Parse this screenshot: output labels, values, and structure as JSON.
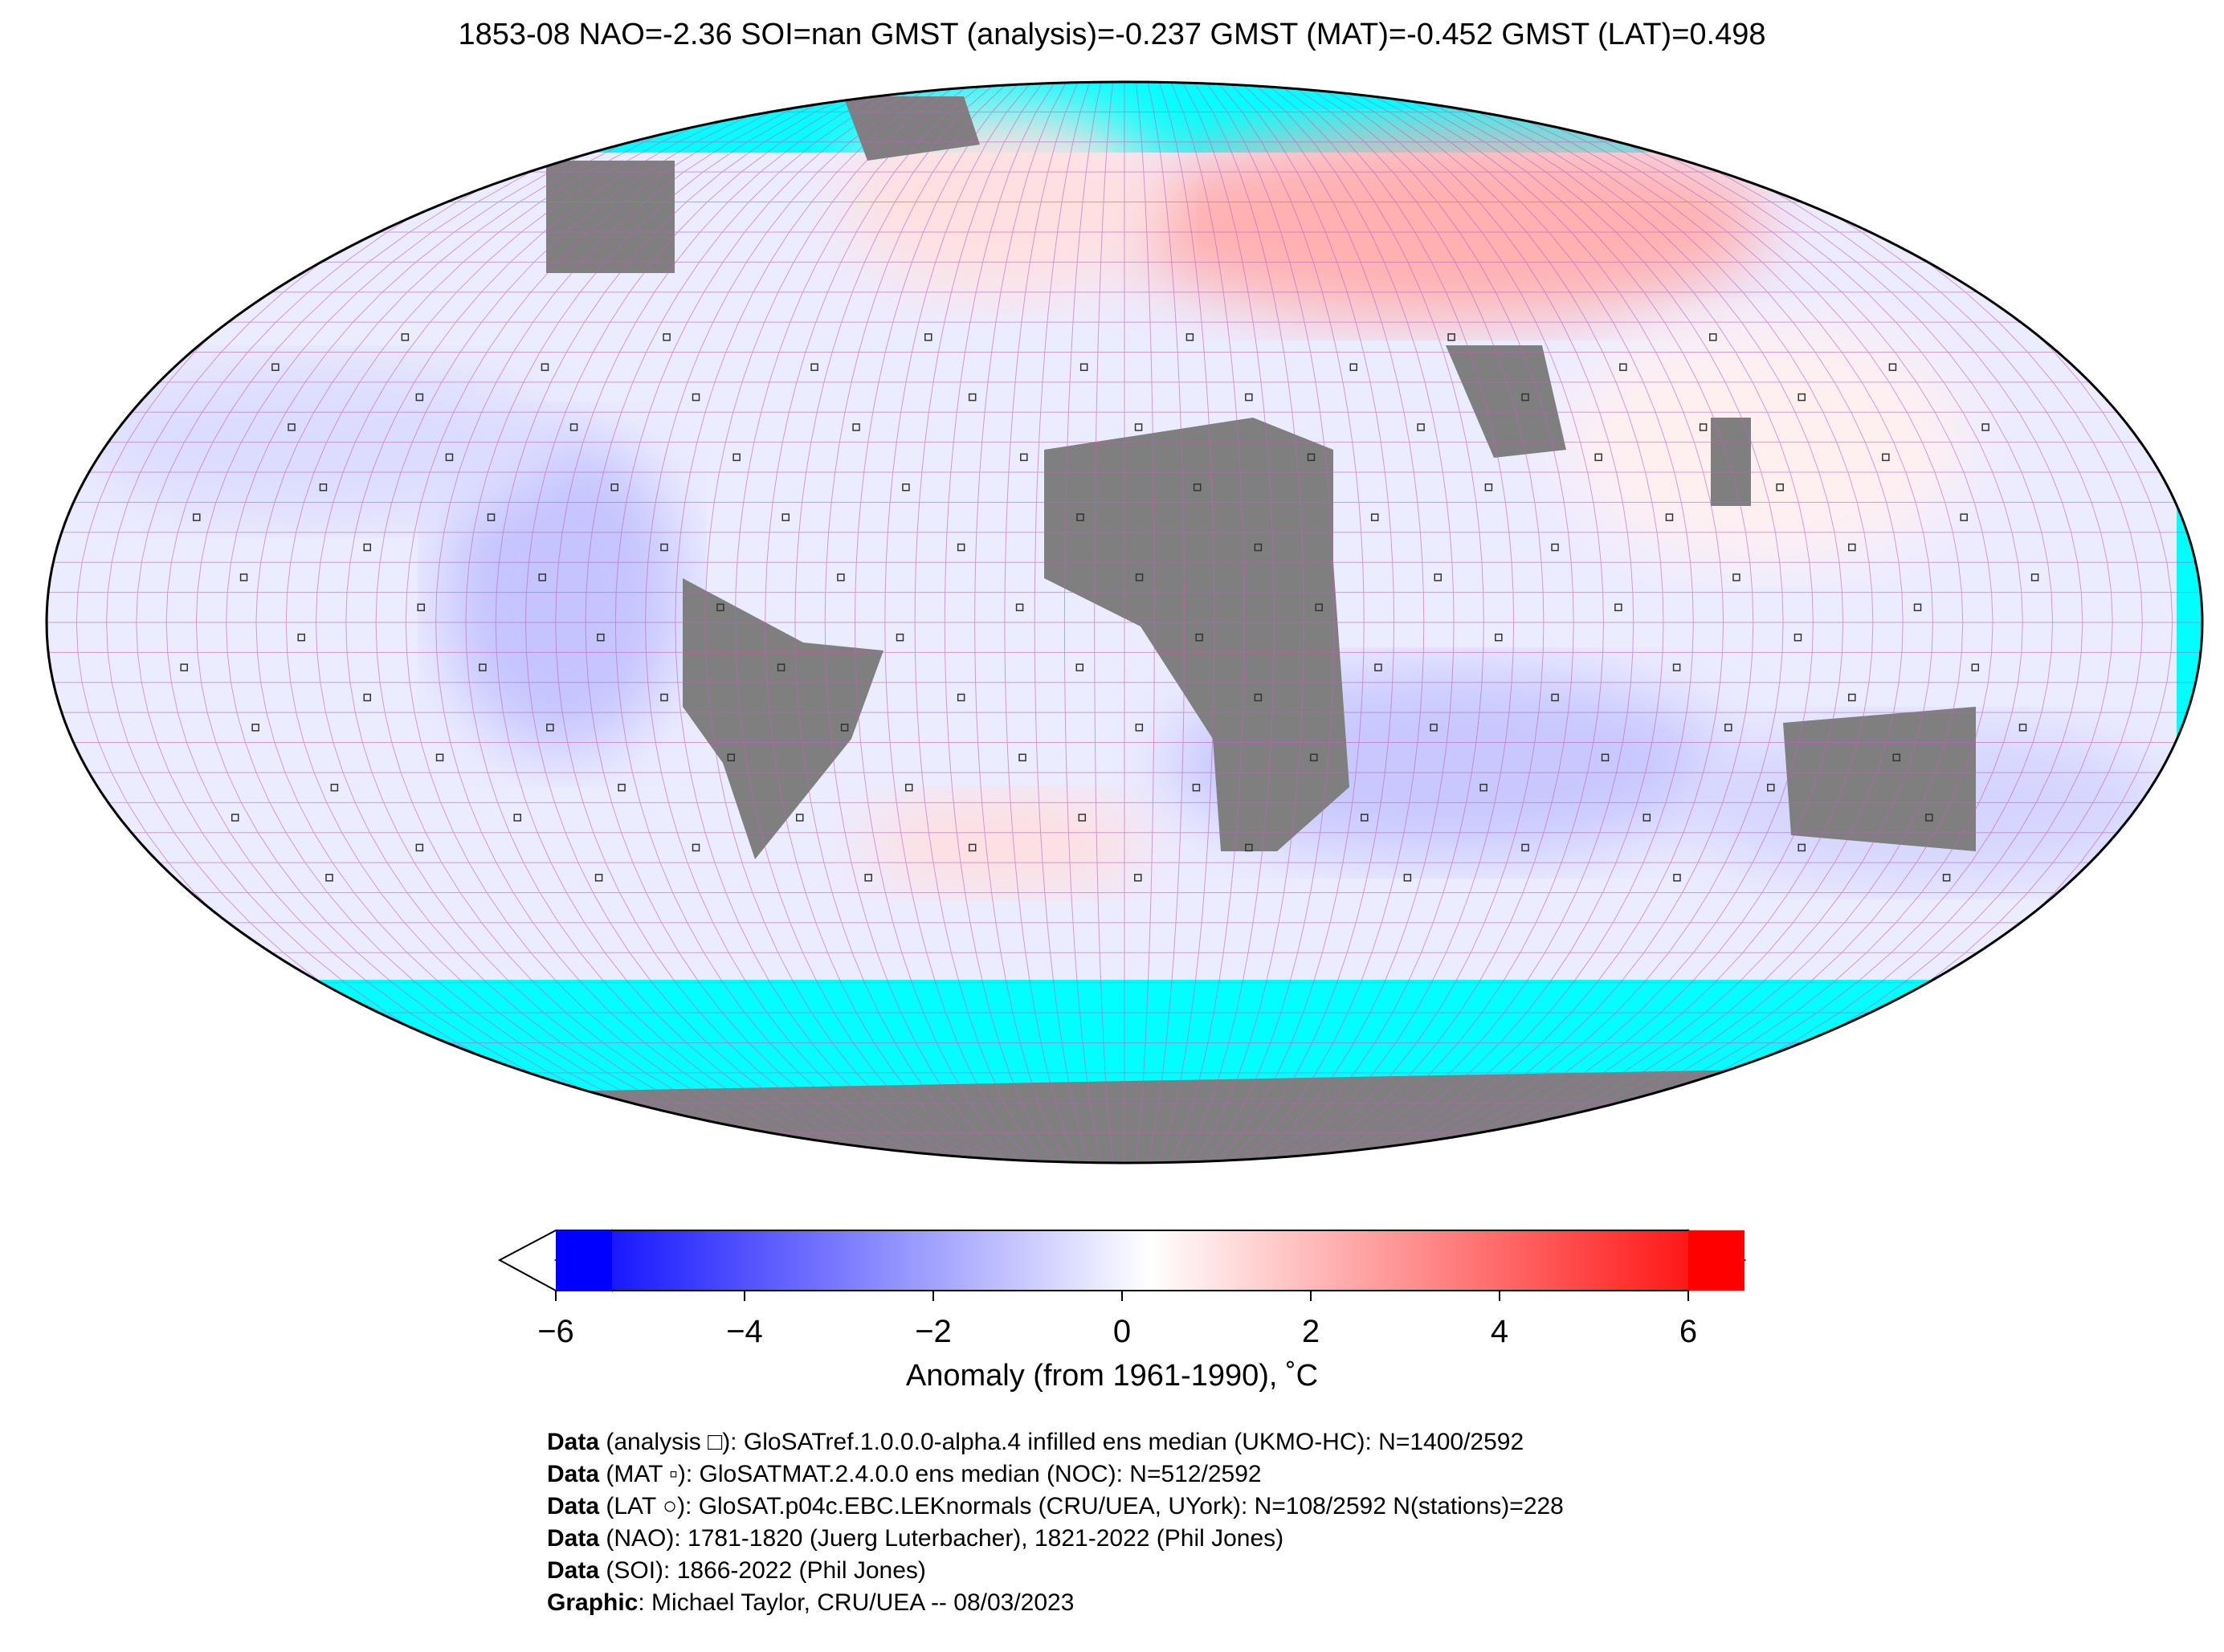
{
  "title": "1853-08 NAO=-2.36 SOI=nan GMST (analysis)=-0.237 GMST (MAT)=-0.452 GMST (LAT)=0.498",
  "map": {
    "projection": "Robinson",
    "ocean_no_data_color": "#00ffff",
    "land_no_data_color": "#7f7f7f",
    "grid_color": "#c060c0",
    "markers": [
      "analysis square",
      "MAT small square",
      "LAT circle"
    ]
  },
  "colorbar": {
    "colormap": "bwr",
    "min": -6,
    "max": 6,
    "extend": "both",
    "ticks": [
      "−6",
      "−4",
      "−2",
      "0",
      "2",
      "4",
      "6"
    ],
    "label": "Anomaly (from 1961-1990), ˚C",
    "low_color": "#0000ff",
    "mid_color": "#ffffff",
    "high_color": "#ff0000"
  },
  "footer": [
    {
      "bold": "Data",
      "text": " (analysis □): GloSATref.1.0.0.0-alpha.4 infilled ens median (UKMO-HC): N=1400/2592"
    },
    {
      "bold": "Data",
      "text": " (MAT ▫): GloSATMAT.2.4.0.0 ens median (NOC): N=512/2592"
    },
    {
      "bold": "Data",
      "text": " (LAT ○): GloSAT.p04c.EBC.LEKnormals (CRU/UEA, UYork): N=108/2592 N(stations)=228"
    },
    {
      "bold": "Data",
      "text": " (NAO): 1781-1820 (Juerg Luterbacher), 1821-2022 (Phil Jones)"
    },
    {
      "bold": "Data",
      "text": " (SOI): 1866-2022 (Phil Jones)"
    },
    {
      "bold": "Graphic",
      "text": ": Michael Taylor, CRU/UEA -- 08/03/2023"
    }
  ]
}
